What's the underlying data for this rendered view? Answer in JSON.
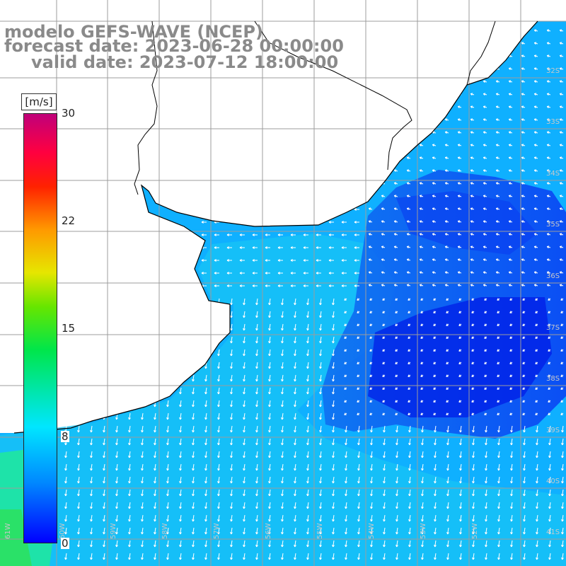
{
  "title": {
    "line1": "modelo GEFS-WAVE (NCEP)",
    "line2": "forecast date: 2023-06-28 00:00:00",
    "line3": "valid date: 2023-07-12 18:00:00"
  },
  "colorbar": {
    "unit": "[m/s]",
    "ticks": [
      "30",
      "22",
      "15",
      "8",
      "0"
    ],
    "tick_values": [
      30,
      22,
      15,
      8,
      0
    ],
    "min": 0,
    "max": 30,
    "colors": [
      "#0000ff",
      "#0088ff",
      "#00e6ff",
      "#00e64a",
      "#66e600",
      "#e6e600",
      "#ff9900",
      "#ff2200",
      "#ff0040",
      "#c0007a"
    ]
  },
  "grid": {
    "lat_labels": [
      "32S",
      "33S",
      "34S",
      "35S",
      "36S",
      "37S",
      "38S",
      "39S",
      "40S",
      "41S"
    ],
    "lon_labels": [
      "61W",
      "60W",
      "59W",
      "58W",
      "57W",
      "56W",
      "55W",
      "54W",
      "53W",
      "52W"
    ]
  },
  "colors": {
    "land": "#ffffff",
    "coast": "#000000",
    "grid": "#b0b0b0",
    "arrow": "#ffffff",
    "title": "#8a8a8a"
  }
}
